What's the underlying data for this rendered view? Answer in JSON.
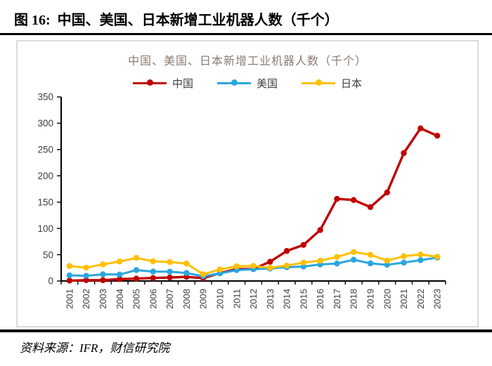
{
  "header": {
    "figure_label": "图 16:",
    "figure_title": "中国、美国、日本新增工业机器人数（千个）"
  },
  "footer": {
    "source_text": "资料来源：IFR，财信研究院"
  },
  "colors": {
    "china_red": "#C00000",
    "usa_blue": "#2BA6DE",
    "japan_yellow": "#FFC000",
    "axis_text": "#404040",
    "chart_title_text": "#8C7C72",
    "panel_border": "#DCDCDC",
    "rule_black": "#000000"
  },
  "chart_data": {
    "type": "line",
    "title": "中国、美国、日本新增工业机器人数（千个）",
    "legend_position": "top",
    "grid": false,
    "ylim": [
      0,
      350
    ],
    "ytick_step": 50,
    "yticks": [
      0,
      50,
      100,
      150,
      200,
      250,
      300,
      350
    ],
    "categories": [
      "2001",
      "2002",
      "2003",
      "2004",
      "2005",
      "2006",
      "2007",
      "2008",
      "2009",
      "2010",
      "2011",
      "2012",
      "2013",
      "2014",
      "2015",
      "2016",
      "2017",
      "2018",
      "2019",
      "2020",
      "2021",
      "2022",
      "2023"
    ],
    "series": [
      {
        "id": "china",
        "name": "中国",
        "color": "#C00000",
        "values": [
          0.7,
          1.6,
          1.5,
          3.5,
          4.5,
          5.8,
          6.6,
          7.9,
          5.5,
          15.0,
          22.6,
          23.0,
          36.6,
          57.1,
          68.6,
          97.0,
          156.2,
          154.0,
          140.5,
          168.4,
          243.3,
          290.3,
          276.3
        ]
      },
      {
        "id": "usa",
        "name": "美国",
        "color": "#2BA6DE",
        "values": [
          10.8,
          9.9,
          12.7,
          12.3,
          20.7,
          17.9,
          17.7,
          15.2,
          8.9,
          14.4,
          20.6,
          22.4,
          23.7,
          26.2,
          27.5,
          31.4,
          33.2,
          40.4,
          33.5,
          30.8,
          35.0,
          39.6,
          44.5
        ]
      },
      {
        "id": "japan",
        "name": "日本",
        "color": "#FFC000",
        "values": [
          28.4,
          25.4,
          31.6,
          37.1,
          44.0,
          37.4,
          36.1,
          33.1,
          12.8,
          21.9,
          27.9,
          28.7,
          25.1,
          29.3,
          35.0,
          38.6,
          45.6,
          55.2,
          49.9,
          38.7,
          47.2,
          50.4,
          46.1
        ]
      }
    ]
  }
}
